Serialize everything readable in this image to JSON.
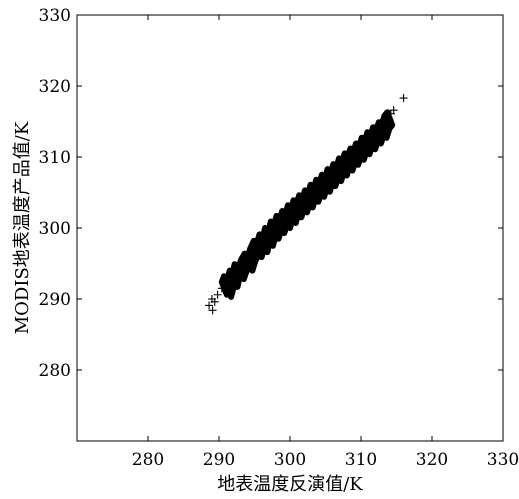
{
  "chart_data": {
    "type": "scatter",
    "title": "",
    "xlabel": "地表温度反演值/K",
    "ylabel": "MODIS地表温度产品值/K",
    "xlim": [
      270,
      330
    ],
    "ylim": [
      270,
      330
    ],
    "xticks": [
      "280",
      "290",
      "300",
      "310",
      "320",
      "330"
    ],
    "yticks": [
      "280",
      "290",
      "300",
      "310",
      "320",
      "330"
    ],
    "marker": "+",
    "marker_color": "#000000",
    "grid": false,
    "series": [
      {
        "points": [
          [
            288.6,
            289.1
          ],
          [
            289.1,
            288.4
          ],
          [
            289.4,
            289.6
          ],
          [
            289.0,
            290.0
          ],
          [
            289.8,
            290.6
          ],
          [
            290.4,
            291.5
          ],
          [
            290.7,
            292.3
          ],
          [
            291.0,
            291.2
          ],
          [
            291.5,
            293.1
          ],
          [
            291.9,
            292.6
          ],
          [
            292.2,
            294.0
          ],
          [
            292.8,
            293.7
          ],
          [
            293.1,
            294.6
          ],
          [
            293.6,
            295.5
          ],
          [
            294.0,
            294.9
          ],
          [
            294.4,
            296.2
          ],
          [
            294.9,
            297.3
          ],
          [
            295.3,
            296.8
          ],
          [
            295.7,
            298.2
          ],
          [
            296.1,
            297.5
          ],
          [
            296.5,
            299.1
          ],
          [
            296.9,
            298.4
          ],
          [
            297.3,
            300.0
          ],
          [
            297.7,
            299.4
          ],
          [
            298.1,
            300.8
          ],
          [
            298.5,
            300.2
          ],
          [
            298.9,
            301.5
          ],
          [
            299.3,
            300.9
          ],
          [
            299.7,
            302.3
          ],
          [
            300.1,
            301.6
          ],
          [
            300.5,
            303.0
          ],
          [
            300.9,
            302.4
          ],
          [
            301.3,
            303.7
          ],
          [
            301.7,
            303.1
          ],
          [
            302.1,
            304.4
          ],
          [
            302.5,
            303.8
          ],
          [
            302.9,
            305.2
          ],
          [
            303.3,
            304.6
          ],
          [
            303.7,
            305.9
          ],
          [
            304.1,
            305.3
          ],
          [
            304.5,
            306.6
          ],
          [
            304.9,
            306.0
          ],
          [
            305.3,
            307.4
          ],
          [
            305.7,
            306.8
          ],
          [
            306.1,
            308.1
          ],
          [
            306.5,
            307.5
          ],
          [
            306.9,
            308.9
          ],
          [
            307.3,
            308.3
          ],
          [
            307.7,
            309.6
          ],
          [
            308.1,
            309.0
          ],
          [
            308.5,
            310.3
          ],
          [
            308.9,
            309.8
          ],
          [
            309.3,
            311.0
          ],
          [
            309.7,
            310.5
          ],
          [
            310.1,
            311.8
          ],
          [
            310.5,
            311.3
          ],
          [
            310.9,
            312.6
          ],
          [
            311.3,
            312.0
          ],
          [
            311.7,
            313.3
          ],
          [
            312.1,
            312.8
          ],
          [
            312.5,
            314.0
          ],
          [
            312.9,
            313.6
          ],
          [
            313.3,
            314.9
          ],
          [
            313.7,
            315.4
          ],
          [
            314.2,
            316.1
          ],
          [
            314.6,
            316.6
          ],
          [
            316.0,
            318.3
          ]
        ]
      }
    ]
  }
}
